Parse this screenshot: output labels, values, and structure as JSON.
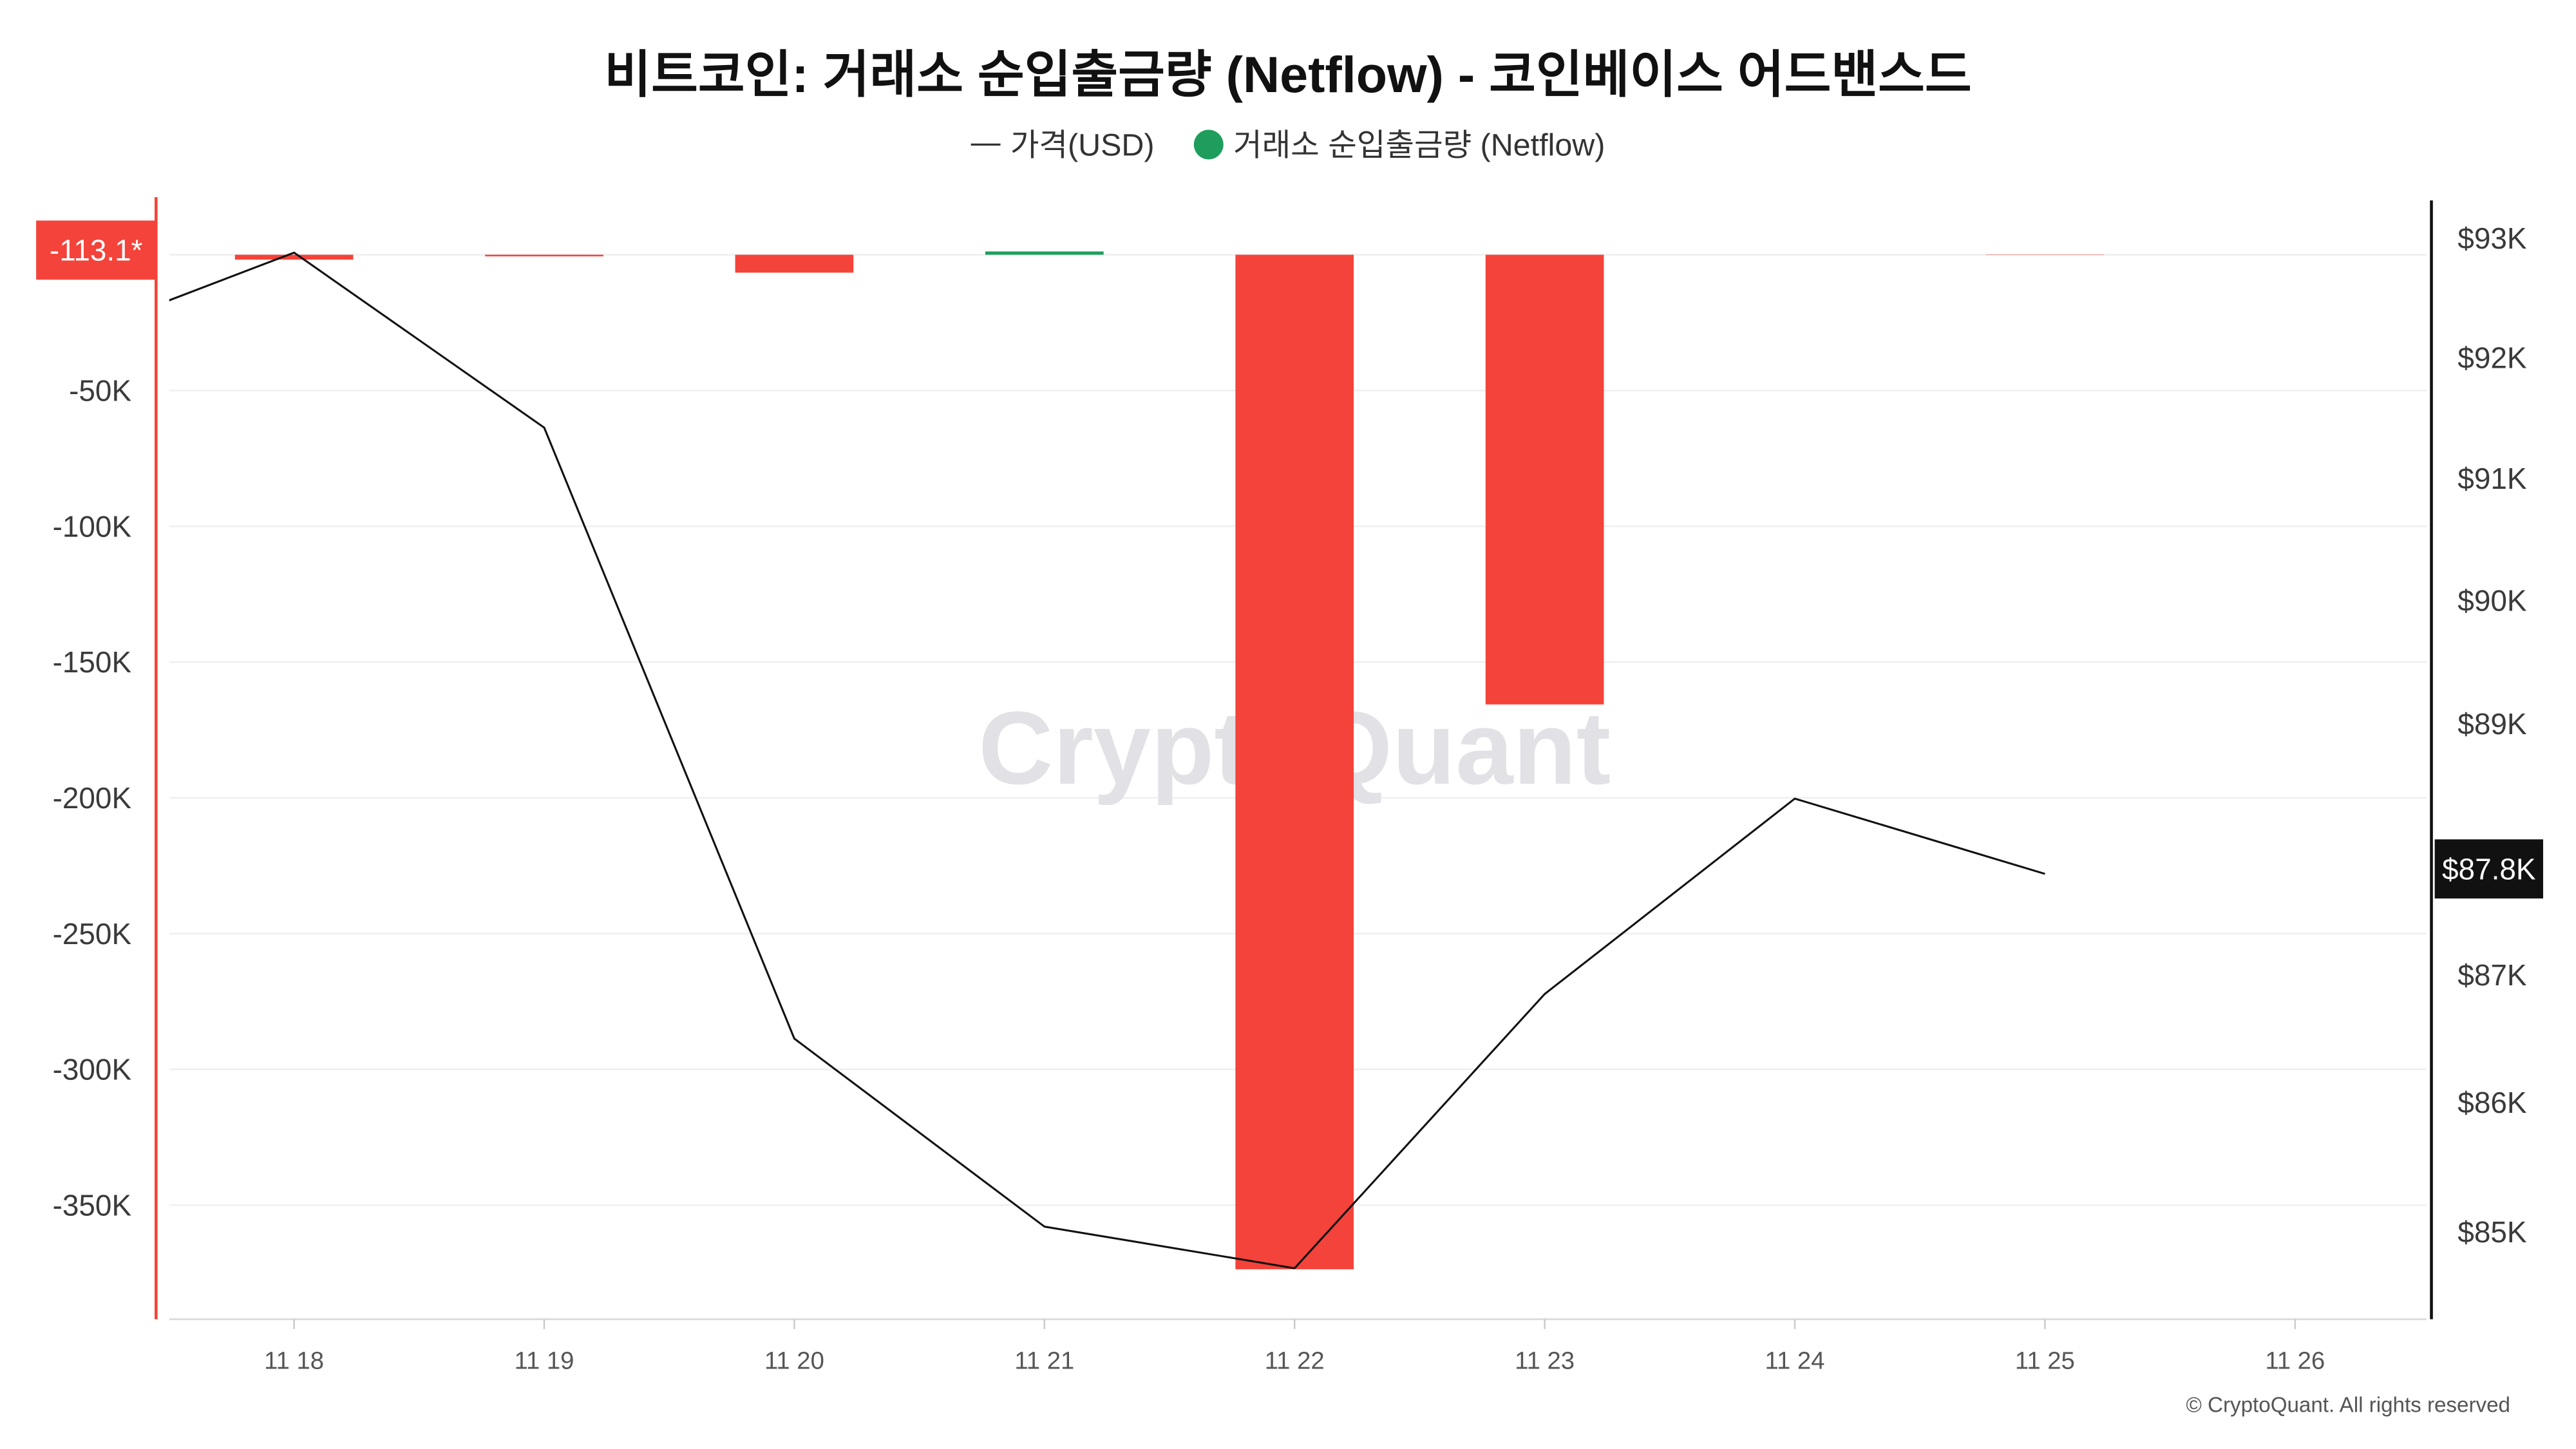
{
  "watermark": "CryptoQuant",
  "footer": "© CryptoQuant. All rights reserved",
  "chart_data": {
    "type": "bar",
    "title": "비트코인: 거래소 순입출금량 (Netflow) - 코인베이스 어드밴스드",
    "legend": {
      "placement": "top-center"
    },
    "grid": true,
    "categories": [
      "11 18",
      "11 19",
      "11 20",
      "11 21",
      "11 22",
      "11 23",
      "11 24",
      "11 25",
      "11 26"
    ],
    "series": [
      {
        "name": "가격(USD)",
        "type": "line",
        "axis": "right",
        "color": "#111111",
        "legend_icon": "line-icon",
        "previous_value": 92080,
        "values": [
          92880,
          91420,
          86500,
          85040,
          84720,
          86850,
          88400,
          87800,
          null
        ],
        "current_label": "$87.8K"
      },
      {
        "name": "거래소 순입출금량 (Netflow)",
        "type": "bar",
        "axis": "left",
        "color": "#1f9d5c",
        "negative_color": "#f4433a",
        "legend_icon": "dot-icon",
        "values": [
          -1800,
          -600,
          -6600,
          1200,
          -373600,
          -165600,
          0,
          -113.1,
          null
        ],
        "current_label": "-113.1*"
      }
    ],
    "y_left": {
      "scale": "linear",
      "range": [
        -392000,
        20000
      ],
      "ticks": [
        -50000,
        -100000,
        -150000,
        -200000,
        -250000,
        -300000,
        -350000
      ],
      "tick_labels": [
        "-50K",
        "-100K",
        "-150K",
        "-200K",
        "-250K",
        "-300K",
        "-350K"
      ],
      "color": "#f4433a"
    },
    "y_right": {
      "scale": "log",
      "range": [
        84330,
        93320
      ],
      "ticks": [
        93000,
        92000,
        91000,
        90000,
        89000,
        87000,
        86000,
        85000
      ],
      "tick_labels": [
        "$93K",
        "$92K",
        "$91K",
        "$90K",
        "$89K",
        "$87K",
        "$86K",
        "$85K"
      ],
      "color": "#111111"
    }
  }
}
